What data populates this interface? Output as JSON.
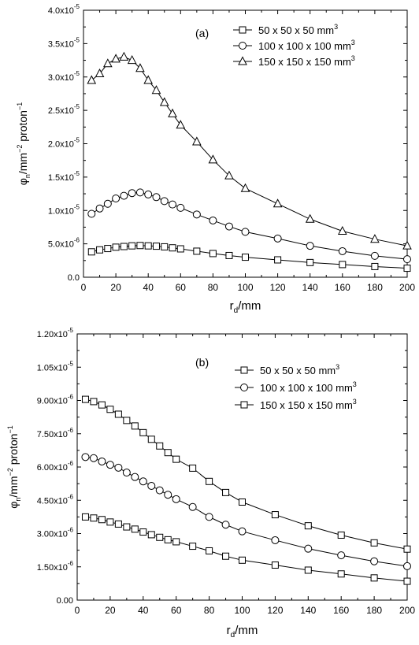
{
  "chart_data": [
    {
      "type": "line",
      "panel_label": "(a)",
      "xlabel": "r",
      "xlabel_sub": "d",
      "xlabel_rest": "/mm",
      "ylabel_parts": [
        "φ",
        "n",
        "/mm",
        "−2",
        " proton",
        "−1"
      ],
      "xlim": [
        0,
        200
      ],
      "ylim": [
        0,
        4e-05
      ],
      "xticks": [
        0,
        20,
        40,
        60,
        80,
        100,
        120,
        140,
        160,
        180,
        200
      ],
      "yticks": [
        {
          "value": 0,
          "mantissa": "0.0",
          "exp": ""
        },
        {
          "value": 5e-06,
          "mantissa": "5.0x10",
          "exp": "-6"
        },
        {
          "value": 1e-05,
          "mantissa": "1.0x10",
          "exp": "-5"
        },
        {
          "value": 1.5e-05,
          "mantissa": "1.5x10",
          "exp": "-5"
        },
        {
          "value": 2e-05,
          "mantissa": "2.0x10",
          "exp": "-5"
        },
        {
          "value": 2.5e-05,
          "mantissa": "2.5x10",
          "exp": "-5"
        },
        {
          "value": 3e-05,
          "mantissa": "3.0x10",
          "exp": "-5"
        },
        {
          "value": 3.5e-05,
          "mantissa": "3.5x10",
          "exp": "-5"
        },
        {
          "value": 4e-05,
          "mantissa": "4.0x10",
          "exp": "-5"
        }
      ],
      "legend_position": "top-right",
      "x": [
        5,
        10,
        15,
        20,
        25,
        30,
        35,
        40,
        45,
        50,
        55,
        60,
        70,
        80,
        90,
        100,
        120,
        140,
        160,
        180,
        200
      ],
      "series": [
        {
          "name": "50 x 50 x 50 mm",
          "sup": "3",
          "marker": "square",
          "values": [
            3.8e-06,
            4.1e-06,
            4.3e-06,
            4.5e-06,
            4.6e-06,
            4.7e-06,
            4.75e-06,
            4.7e-06,
            4.65e-06,
            4.55e-06,
            4.4e-06,
            4.25e-06,
            3.9e-06,
            3.55e-06,
            3.25e-06,
            3e-06,
            2.6e-06,
            2.2e-06,
            1.9e-06,
            1.6e-06,
            1.35e-06
          ]
        },
        {
          "name": "100 x 100 x 100 mm",
          "sup": "3",
          "marker": "circle",
          "values": [
            9.5e-06,
            1.03e-05,
            1.1e-05,
            1.18e-05,
            1.22e-05,
            1.26e-05,
            1.27e-05,
            1.24e-05,
            1.2e-05,
            1.14e-05,
            1.09e-05,
            1.04e-05,
            9.4e-06,
            8.5e-06,
            7.6e-06,
            6.8e-06,
            5.8e-06,
            4.7e-06,
            3.9e-06,
            3.2e-06,
            2.7e-06
          ]
        },
        {
          "name": "150 x 150 x 150 mm",
          "sup": "3",
          "marker": "triangle",
          "values": [
            2.95e-05,
            3.05e-05,
            3.2e-05,
            3.27e-05,
            3.3e-05,
            3.25e-05,
            3.13e-05,
            2.95e-05,
            2.8e-05,
            2.62e-05,
            2.45e-05,
            2.28e-05,
            2.03e-05,
            1.76e-05,
            1.52e-05,
            1.33e-05,
            1.1e-05,
            8.7e-06,
            6.9e-06,
            5.7e-06,
            4.7e-06
          ]
        }
      ]
    },
    {
      "type": "line",
      "panel_label": "(b)",
      "xlabel": "r",
      "xlabel_sub": "d",
      "xlabel_rest": "/mm",
      "ylabel_parts": [
        "φ",
        "n",
        "/mm",
        "−2",
        " proton",
        "−1"
      ],
      "xlim": [
        0,
        200
      ],
      "ylim": [
        0,
        1.2e-05
      ],
      "xticks": [
        0,
        20,
        40,
        60,
        80,
        100,
        120,
        140,
        160,
        180,
        200
      ],
      "yticks": [
        {
          "value": 0,
          "mantissa": "0.00",
          "exp": ""
        },
        {
          "value": 1.5e-06,
          "mantissa": "1.50x10",
          "exp": "-6"
        },
        {
          "value": 3e-06,
          "mantissa": "3.00x10",
          "exp": "-6"
        },
        {
          "value": 4.5e-06,
          "mantissa": "4.50x10",
          "exp": "-6"
        },
        {
          "value": 6e-06,
          "mantissa": "6.00x10",
          "exp": "-6"
        },
        {
          "value": 7.5e-06,
          "mantissa": "7.50x10",
          "exp": "-6"
        },
        {
          "value": 9e-06,
          "mantissa": "9.00x10",
          "exp": "-6"
        },
        {
          "value": 1.05e-05,
          "mantissa": "1.05x10",
          "exp": "-5"
        },
        {
          "value": 1.2e-05,
          "mantissa": "1.20x10",
          "exp": "-5"
        }
      ],
      "legend_position": "top-right",
      "x": [
        5,
        10,
        15,
        20,
        25,
        30,
        35,
        40,
        45,
        50,
        55,
        60,
        70,
        80,
        90,
        100,
        120,
        140,
        160,
        180,
        200
      ],
      "series": [
        {
          "name": "50 x 50 x 50 mm",
          "sup": "3",
          "marker": "square",
          "values": [
            3.75e-06,
            3.7e-06,
            3.63e-06,
            3.52e-06,
            3.43e-06,
            3.3e-06,
            3.2e-06,
            3.07e-06,
            2.95e-06,
            2.83e-06,
            2.72e-06,
            2.63e-06,
            2.43e-06,
            2.22e-06,
            1.98e-06,
            1.8e-06,
            1.58e-06,
            1.35e-06,
            1.18e-06,
            1e-06,
            8.5e-07
          ]
        },
        {
          "name": "100 x 100 x 100 mm",
          "sup": "3",
          "marker": "circle",
          "values": [
            6.45e-06,
            6.4e-06,
            6.25e-06,
            6.1e-06,
            5.97e-06,
            5.75e-06,
            5.55e-06,
            5.35e-06,
            5.15e-06,
            4.95e-06,
            4.75e-06,
            4.55e-06,
            4.2e-06,
            3.75e-06,
            3.4e-06,
            3.1e-06,
            2.7e-06,
            2.32e-06,
            2.02e-06,
            1.75e-06,
            1.53e-06
          ]
        },
        {
          "name": "150 x 150 x 150 mm",
          "sup": "3",
          "marker": "square",
          "values": [
            9.05e-06,
            8.95e-06,
            8.8e-06,
            8.6e-06,
            8.38e-06,
            8.1e-06,
            7.85e-06,
            7.55e-06,
            7.25e-06,
            6.95e-06,
            6.65e-06,
            6.35e-06,
            5.95e-06,
            5.35e-06,
            4.85e-06,
            4.42e-06,
            3.85e-06,
            3.35e-06,
            2.93e-06,
            2.58e-06,
            2.3e-06
          ]
        }
      ]
    }
  ]
}
